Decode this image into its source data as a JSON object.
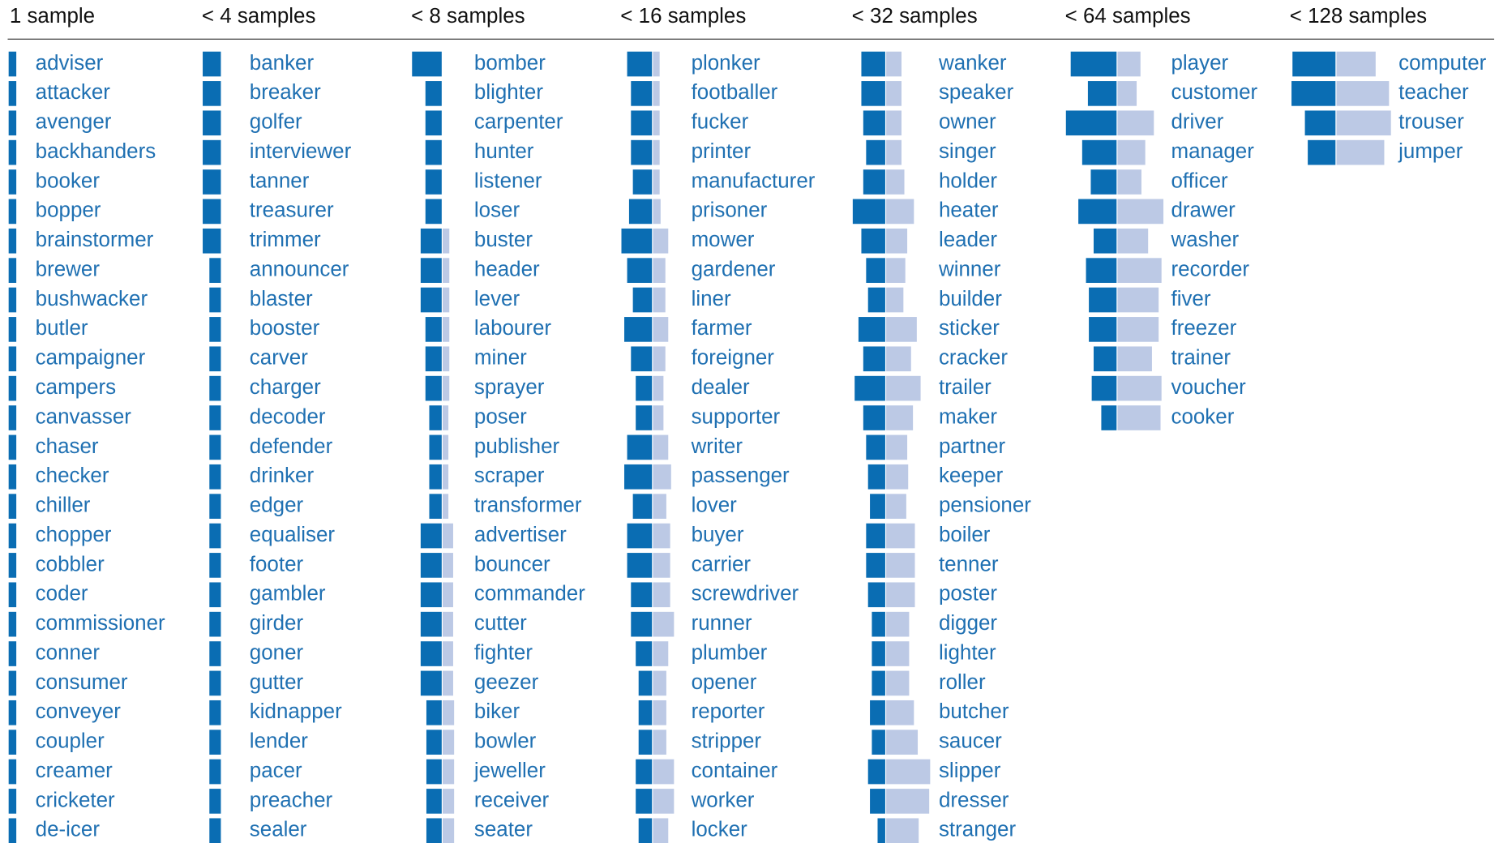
{
  "chart_data": [
    {
      "type": "paired-bar",
      "title": "1 sample",
      "color_left": "#0a6db3",
      "color_right": "#bcc9e5",
      "categories": [
        "adviser",
        "attacker",
        "avenger",
        "backhanders",
        "booker",
        "bopper",
        "brainstormer",
        "brewer",
        "bushwacker",
        "butler",
        "campaigner",
        "campers",
        "canvasser",
        "chaser",
        "checker",
        "chiller",
        "chopper",
        "cobbler",
        "coder",
        "commissioner",
        "conner",
        "consumer",
        "conveyer",
        "coupler",
        "creamer",
        "cricketer",
        "de-icer"
      ],
      "left": [
        8,
        8,
        8,
        8,
        8,
        8,
        8,
        8,
        8,
        8,
        8,
        8,
        8,
        8,
        8,
        8,
        8,
        8,
        8,
        8,
        8,
        8,
        8,
        8,
        8,
        8,
        8
      ],
      "right": [
        0,
        0,
        0,
        0,
        0,
        0,
        0,
        0,
        0,
        0,
        0,
        0,
        0,
        0,
        0,
        0,
        0,
        0,
        0,
        0,
        0,
        0,
        0,
        0,
        0,
        0,
        0
      ]
    },
    {
      "type": "paired-bar",
      "title": "< 4 samples",
      "color_left": "#0a6db3",
      "color_right": "#bcc9e5",
      "categories": [
        "banker",
        "breaker",
        "golfer",
        "interviewer",
        "tanner",
        "treasurer",
        "trimmer",
        "announcer",
        "blaster",
        "booster",
        "carver",
        "charger",
        "decoder",
        "defender",
        "drinker",
        "edger",
        "equaliser",
        "footer",
        "gambler",
        "girder",
        "goner",
        "gutter",
        "kidnapper",
        "lender",
        "pacer",
        "preacher",
        "sealer"
      ],
      "left": [
        19,
        19,
        19,
        19,
        19,
        19,
        19,
        12,
        12,
        12,
        12,
        12,
        12,
        12,
        12,
        12,
        12,
        12,
        12,
        12,
        12,
        12,
        12,
        12,
        12,
        12,
        12
      ],
      "right": [
        0,
        0,
        0,
        0,
        0,
        0,
        0,
        0,
        0,
        0,
        0,
        0,
        0,
        0,
        0,
        0,
        0,
        0,
        0,
        0,
        0,
        0,
        0,
        0,
        0,
        0,
        0
      ]
    },
    {
      "type": "paired-bar",
      "title": "< 8 samples",
      "color_left": "#0a6db3",
      "color_right": "#bcc9e5",
      "categories": [
        "bomber",
        "blighter",
        "carpenter",
        "hunter",
        "listener",
        "loser",
        "buster",
        "header",
        "lever",
        "labourer",
        "miner",
        "sprayer",
        "poser",
        "publisher",
        "scraper",
        "transformer",
        "advertiser",
        "bouncer",
        "commander",
        "cutter",
        "fighter",
        "geezer",
        "biker",
        "bowler",
        "jeweller",
        "receiver",
        "seater"
      ],
      "left": [
        31,
        17,
        17,
        17,
        17,
        17,
        22,
        22,
        22,
        17,
        17,
        17,
        13,
        13,
        13,
        13,
        22,
        22,
        22,
        22,
        22,
        22,
        16,
        16,
        16,
        16,
        16
      ],
      "right": [
        0,
        0,
        0,
        0,
        0,
        0,
        7,
        7,
        7,
        7,
        7,
        7,
        6,
        6,
        6,
        6,
        11,
        11,
        11,
        11,
        11,
        11,
        12,
        12,
        12,
        12,
        12
      ]
    },
    {
      "type": "paired-bar",
      "title": "< 16 samples",
      "color_left": "#0a6db3",
      "color_right": "#bcc9e5",
      "categories": [
        "plonker",
        "footballer",
        "fucker",
        "printer",
        "manufacturer",
        "prisoner",
        "mower",
        "gardener",
        "liner",
        "farmer",
        "foreigner",
        "dealer",
        "supporter",
        "writer",
        "passenger",
        "lover",
        "buyer",
        "carrier",
        "screwdriver",
        "runner",
        "plumber",
        "opener",
        "reporter",
        "stripper",
        "container",
        "worker",
        "locker"
      ],
      "left": [
        26,
        22,
        22,
        22,
        20,
        24,
        32,
        26,
        20,
        29,
        22,
        17,
        17,
        26,
        29,
        20,
        26,
        26,
        22,
        22,
        17,
        14,
        14,
        14,
        17,
        17,
        14
      ],
      "right": [
        7,
        7,
        7,
        7,
        7,
        8,
        16,
        13,
        13,
        16,
        13,
        11,
        11,
        16,
        19,
        14,
        18,
        18,
        18,
        22,
        16,
        14,
        14,
        14,
        22,
        22,
        16
      ]
    },
    {
      "type": "paired-bar",
      "title": "< 32 samples",
      "color_left": "#0a6db3",
      "color_right": "#bcc9e5",
      "categories": [
        "wanker",
        "speaker",
        "owner",
        "singer",
        "holder",
        "heater",
        "leader",
        "winner",
        "builder",
        "sticker",
        "cracker",
        "trailer",
        "maker",
        "partner",
        "keeper",
        "pensioner",
        "boiler",
        "tenner",
        "poster",
        "digger",
        "lighter",
        "roller",
        "butcher",
        "saucer",
        "slipper",
        "dresser",
        "stranger"
      ],
      "left": [
        25,
        25,
        23,
        20,
        23,
        34,
        25,
        20,
        18,
        28,
        23,
        32,
        23,
        20,
        18,
        16,
        20,
        20,
        18,
        14,
        14,
        14,
        16,
        14,
        18,
        16,
        8
      ],
      "right": [
        16,
        16,
        16,
        16,
        19,
        29,
        22,
        20,
        18,
        32,
        26,
        36,
        28,
        22,
        23,
        21,
        30,
        30,
        30,
        24,
        24,
        24,
        29,
        33,
        46,
        45,
        34
      ]
    },
    {
      "type": "paired-bar",
      "title": "< 64 samples",
      "color_left": "#0a6db3",
      "color_right": "#bcc9e5",
      "categories": [
        "player",
        "customer",
        "driver",
        "manager",
        "officer",
        "drawer",
        "washer",
        "recorder",
        "fiver",
        "freezer",
        "trainer",
        "voucher",
        "cooker"
      ],
      "left": [
        48,
        30,
        53,
        36,
        27,
        40,
        24,
        32,
        29,
        29,
        24,
        26,
        16
      ],
      "right": [
        24,
        20,
        38,
        29,
        25,
        48,
        32,
        46,
        43,
        43,
        36,
        46,
        45
      ]
    },
    {
      "type": "paired-bar",
      "title": "< 128 samples",
      "color_left": "#0a6db3",
      "color_right": "#bcc9e5",
      "categories": [
        "computer",
        "teacher",
        "trouser",
        "jumper"
      ],
      "left": [
        45,
        46,
        32,
        29
      ],
      "right": [
        41,
        55,
        57,
        50
      ]
    }
  ]
}
